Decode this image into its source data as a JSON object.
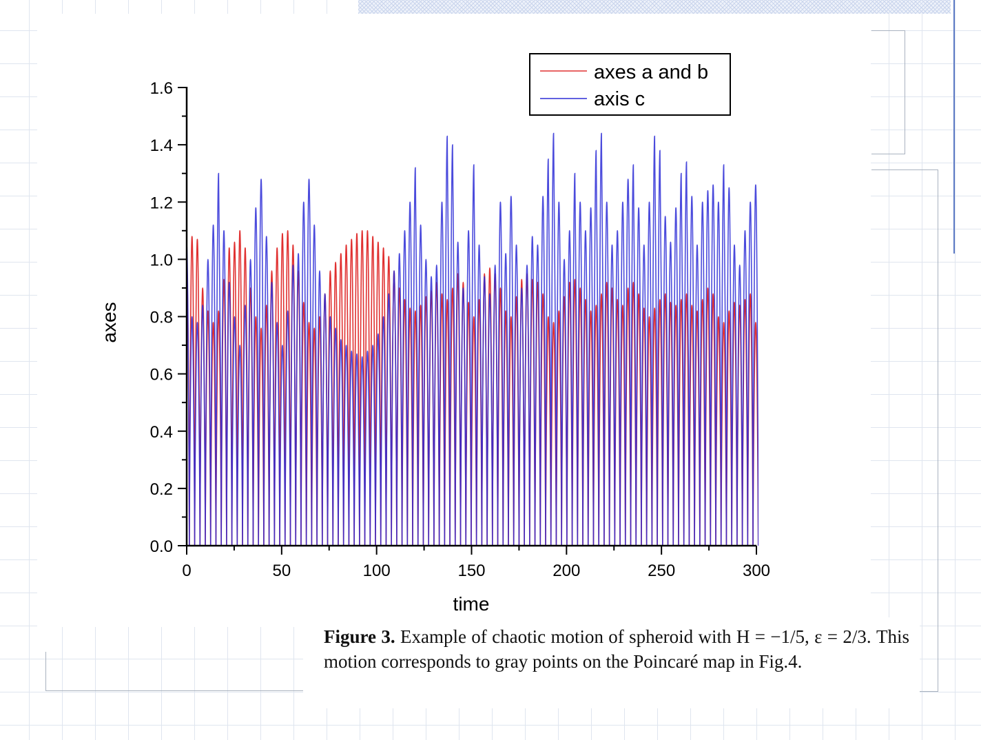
{
  "caption": {
    "label": "Figure 3.",
    "text": "Example of chaotic motion of spheroid with H = −1/5, ε = 2/3. This motion corresponds to gray points on the Poincaré map in Fig.4."
  },
  "chart_data": {
    "type": "line",
    "title": "",
    "xlabel": "time",
    "ylabel": "axes",
    "xlim": [
      0,
      300
    ],
    "ylim": [
      0,
      1.6
    ],
    "xticks": [
      0,
      50,
      100,
      150,
      200,
      250,
      300
    ],
    "yticks": [
      0.0,
      0.2,
      0.4,
      0.6,
      0.8,
      1.0,
      1.2,
      1.4,
      1.6
    ],
    "xtick_labels": [
      "0",
      "50",
      "100",
      "150",
      "200",
      "250",
      "300"
    ],
    "ytick_labels": [
      "0.0",
      "0.2",
      "0.4",
      "0.6",
      "0.8",
      "1.0",
      "1.2",
      "1.4",
      "1.6"
    ],
    "grid": false,
    "legend": "top-right",
    "series": [
      {
        "name": "axes a and b",
        "color": "#e03030",
        "peaks": [
          [
            0,
            1.0
          ],
          [
            2.8,
            1.08
          ],
          [
            5.6,
            1.07
          ],
          [
            8.4,
            0.9
          ],
          [
            11.2,
            0.82
          ],
          [
            14.0,
            0.78
          ],
          [
            16.8,
            0.82
          ],
          [
            19.6,
            0.93
          ],
          [
            22.4,
            1.04
          ],
          [
            25.2,
            1.06
          ],
          [
            28.0,
            1.1
          ],
          [
            30.8,
            1.04
          ],
          [
            33.6,
            0.9
          ],
          [
            36.4,
            0.8
          ],
          [
            39.2,
            0.76
          ],
          [
            42.0,
            0.84
          ],
          [
            44.8,
            0.96
          ],
          [
            47.6,
            1.04
          ],
          [
            50.4,
            1.09
          ],
          [
            53.2,
            1.1
          ],
          [
            56.0,
            1.05
          ],
          [
            58.8,
            0.96
          ],
          [
            61.6,
            0.85
          ],
          [
            64.4,
            0.78
          ],
          [
            67.2,
            0.76
          ],
          [
            70.0,
            0.8
          ],
          [
            72.8,
            0.88
          ],
          [
            75.6,
            0.96
          ],
          [
            78.4,
            0.99
          ],
          [
            81.2,
            1.02
          ],
          [
            84.0,
            1.05
          ],
          [
            86.8,
            1.07
          ],
          [
            89.6,
            1.09
          ],
          [
            92.4,
            1.1
          ],
          [
            95.2,
            1.1
          ],
          [
            98.0,
            1.08
          ],
          [
            100.8,
            1.06
          ],
          [
            103.6,
            1.04
          ],
          [
            106.4,
            1.01
          ],
          [
            109.2,
            0.96
          ],
          [
            112.0,
            0.9
          ],
          [
            114.8,
            0.86
          ],
          [
            117.6,
            0.83
          ],
          [
            120.4,
            0.82
          ],
          [
            123.2,
            0.84
          ],
          [
            126.0,
            0.87
          ],
          [
            128.8,
            0.89
          ],
          [
            131.6,
            0.92
          ],
          [
            134.4,
            0.88
          ],
          [
            137.2,
            0.86
          ],
          [
            140.0,
            0.9
          ],
          [
            142.8,
            0.95
          ],
          [
            145.6,
            0.92
          ],
          [
            148.4,
            0.85
          ],
          [
            151.2,
            0.8
          ],
          [
            154.0,
            0.86
          ],
          [
            156.8,
            0.95
          ],
          [
            159.6,
            0.97
          ],
          [
            162.4,
            0.95
          ],
          [
            165.2,
            0.9
          ],
          [
            168.0,
            0.82
          ],
          [
            170.8,
            0.8
          ],
          [
            173.6,
            0.87
          ],
          [
            176.4,
            0.93
          ],
          [
            179.2,
            0.95
          ],
          [
            182.0,
            0.93
          ],
          [
            184.8,
            0.92
          ],
          [
            187.6,
            0.88
          ],
          [
            190.4,
            0.8
          ],
          [
            193.2,
            0.78
          ],
          [
            196.0,
            0.82
          ],
          [
            198.8,
            0.87
          ],
          [
            201.6,
            0.92
          ],
          [
            204.4,
            0.93
          ],
          [
            207.2,
            0.9
          ],
          [
            210.0,
            0.86
          ],
          [
            212.8,
            0.82
          ],
          [
            215.6,
            0.84
          ],
          [
            218.4,
            0.88
          ],
          [
            221.2,
            0.92
          ],
          [
            224.0,
            0.9
          ],
          [
            226.8,
            0.86
          ],
          [
            229.6,
            0.84
          ],
          [
            232.4,
            0.9
          ],
          [
            235.2,
            0.92
          ],
          [
            238.0,
            0.88
          ],
          [
            240.8,
            0.83
          ],
          [
            243.6,
            0.8
          ],
          [
            246.4,
            0.83
          ],
          [
            249.2,
            0.86
          ],
          [
            252.0,
            0.88
          ],
          [
            254.8,
            0.85
          ],
          [
            257.6,
            0.84
          ],
          [
            260.4,
            0.86
          ],
          [
            263.2,
            0.88
          ],
          [
            266.0,
            0.84
          ],
          [
            268.8,
            0.82
          ],
          [
            271.6,
            0.86
          ],
          [
            274.4,
            0.9
          ],
          [
            277.2,
            0.88
          ],
          [
            280.0,
            0.8
          ],
          [
            282.8,
            0.78
          ],
          [
            285.6,
            0.82
          ],
          [
            288.4,
            0.85
          ],
          [
            291.2,
            0.84
          ],
          [
            294.0,
            0.86
          ],
          [
            296.8,
            0.88
          ],
          [
            299.6,
            0.78
          ]
        ]
      },
      {
        "name": "axis c",
        "color": "#2b2bd6",
        "peaks": [
          [
            0,
            1.05
          ],
          [
            2.8,
            0.8
          ],
          [
            5.6,
            0.78
          ],
          [
            8.4,
            0.84
          ],
          [
            11.2,
            1.0
          ],
          [
            14.0,
            1.12
          ],
          [
            16.8,
            1.3
          ],
          [
            19.6,
            1.1
          ],
          [
            22.4,
            0.92
          ],
          [
            25.2,
            0.8
          ],
          [
            28.0,
            0.7
          ],
          [
            30.8,
            0.84
          ],
          [
            33.6,
            1.0
          ],
          [
            36.4,
            1.18
          ],
          [
            39.2,
            1.28
          ],
          [
            42.0,
            1.08
          ],
          [
            44.8,
            0.92
          ],
          [
            47.6,
            0.78
          ],
          [
            50.4,
            0.7
          ],
          [
            53.2,
            0.82
          ],
          [
            56.0,
            0.98
          ],
          [
            58.8,
            1.02
          ],
          [
            61.6,
            1.2
          ],
          [
            64.4,
            1.28
          ],
          [
            67.2,
            1.12
          ],
          [
            70.0,
            0.96
          ],
          [
            72.8,
            0.88
          ],
          [
            75.6,
            0.8
          ],
          [
            78.4,
            0.76
          ],
          [
            81.2,
            0.72
          ],
          [
            84.0,
            0.7
          ],
          [
            86.8,
            0.68
          ],
          [
            89.6,
            0.67
          ],
          [
            92.4,
            0.66
          ],
          [
            95.2,
            0.68
          ],
          [
            98.0,
            0.7
          ],
          [
            100.8,
            0.74
          ],
          [
            103.6,
            0.8
          ],
          [
            106.4,
            0.88
          ],
          [
            109.2,
            0.96
          ],
          [
            112.0,
            1.02
          ],
          [
            114.8,
            1.1
          ],
          [
            117.6,
            1.2
          ],
          [
            120.4,
            1.32
          ],
          [
            123.2,
            1.12
          ],
          [
            126.0,
            1.0
          ],
          [
            128.8,
            0.94
          ],
          [
            131.6,
            0.98
          ],
          [
            134.4,
            1.2
          ],
          [
            137.2,
            1.43
          ],
          [
            140.0,
            1.4
          ],
          [
            142.8,
            1.06
          ],
          [
            145.6,
            0.9
          ],
          [
            148.4,
            1.1
          ],
          [
            151.2,
            1.33
          ],
          [
            154.0,
            1.05
          ],
          [
            156.8,
            0.94
          ],
          [
            159.6,
            0.88
          ],
          [
            162.4,
            0.98
          ],
          [
            165.2,
            1.2
          ],
          [
            168.0,
            1.02
          ],
          [
            170.8,
            1.22
          ],
          [
            173.6,
            1.05
          ],
          [
            176.4,
            0.9
          ],
          [
            179.2,
            0.98
          ],
          [
            182.0,
            1.08
          ],
          [
            184.8,
            1.05
          ],
          [
            187.6,
            1.22
          ],
          [
            190.4,
            1.35
          ],
          [
            193.2,
            1.44
          ],
          [
            196.0,
            1.2
          ],
          [
            198.8,
            1.0
          ],
          [
            201.6,
            1.1
          ],
          [
            204.4,
            1.3
          ],
          [
            207.2,
            1.2
          ],
          [
            210.0,
            1.1
          ],
          [
            212.8,
            1.18
          ],
          [
            215.6,
            1.38
          ],
          [
            218.4,
            1.44
          ],
          [
            221.2,
            1.2
          ],
          [
            224.0,
            1.05
          ],
          [
            226.8,
            1.1
          ],
          [
            229.6,
            1.2
          ],
          [
            232.4,
            1.28
          ],
          [
            235.2,
            1.33
          ],
          [
            238.0,
            1.18
          ],
          [
            240.8,
            1.05
          ],
          [
            243.6,
            1.2
          ],
          [
            246.4,
            1.43
          ],
          [
            249.2,
            1.38
          ],
          [
            252.0,
            1.15
          ],
          [
            254.8,
            1.06
          ],
          [
            257.6,
            1.18
          ],
          [
            260.4,
            1.3
          ],
          [
            263.2,
            1.34
          ],
          [
            266.0,
            1.22
          ],
          [
            268.8,
            1.05
          ],
          [
            271.6,
            1.2
          ],
          [
            274.4,
            1.24
          ],
          [
            277.2,
            1.26
          ],
          [
            280.0,
            1.2
          ],
          [
            282.8,
            1.33
          ],
          [
            285.6,
            1.25
          ],
          [
            288.4,
            1.05
          ],
          [
            291.2,
            0.98
          ],
          [
            294.0,
            1.1
          ],
          [
            296.8,
            1.2
          ],
          [
            299.6,
            1.26
          ]
        ]
      }
    ]
  }
}
